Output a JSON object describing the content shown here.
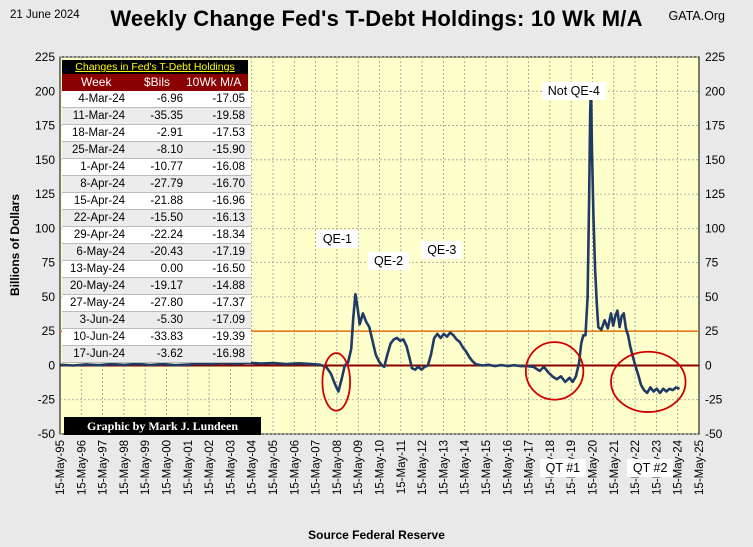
{
  "header": {
    "date": "21 June 2024",
    "title": "Weekly Change Fed's T-Debt Holdings:  10 Wk M/A",
    "source": "GATA.Org"
  },
  "footer": {
    "source_label": "Source Federal Reserve",
    "credit": "Graphic by Mark J. Lundeen"
  },
  "colors": {
    "background": "#e9e9e9",
    "plot_background": "#ffffcc",
    "series_line": "#1f3a64",
    "zero_line": "#8b0000",
    "threshold_line": "#e07a1c",
    "circle": "#d00000",
    "table_header": "#8b0000",
    "table_caption_text": "#ffff00"
  },
  "table": {
    "caption": "Changes in Fed's T-Debt Holdings",
    "headers": [
      "Week",
      "$Bils",
      "10Wk M/A"
    ],
    "rows": [
      [
        "4-Mar-24",
        "-6.96",
        "-17.05"
      ],
      [
        "11-Mar-24",
        "-35.35",
        "-19.58"
      ],
      [
        "18-Mar-24",
        "-2.91",
        "-17.53"
      ],
      [
        "25-Mar-24",
        "-8.10",
        "-15.90"
      ],
      [
        "1-Apr-24",
        "-10.77",
        "-16.08"
      ],
      [
        "8-Apr-24",
        "-27.79",
        "-16.70"
      ],
      [
        "15-Apr-24",
        "-21.88",
        "-16.96"
      ],
      [
        "22-Apr-24",
        "-15.50",
        "-16.13"
      ],
      [
        "29-Apr-24",
        "-22.24",
        "-18.34"
      ],
      [
        "6-May-24",
        "-20.43",
        "-17.19"
      ],
      [
        "13-May-24",
        "0.00",
        "-16.50"
      ],
      [
        "20-May-24",
        "-19.17",
        "-14.88"
      ],
      [
        "27-May-24",
        "-27.80",
        "-17.37"
      ],
      [
        "3-Jun-24",
        "-5.30",
        "-17.09"
      ],
      [
        "10-Jun-24",
        "-33.83",
        "-19.39"
      ],
      [
        "17-Jun-24",
        "-3.62",
        "-16.98"
      ]
    ]
  },
  "annotations": [
    {
      "label": "QE-1",
      "x": 2008.4,
      "y": 92
    },
    {
      "label": "QE-2",
      "x": 2010.8,
      "y": 76
    },
    {
      "label": "QE-3",
      "x": 2013.3,
      "y": 84
    },
    {
      "label": "Not QE-4",
      "x": 2019.5,
      "y": 200
    },
    {
      "label": "QT #1",
      "x": 2019.0,
      "y": -75
    },
    {
      "label": "QT #2",
      "x": 2023.1,
      "y": -75
    }
  ],
  "highlight_circles": [
    {
      "x": 2008.35,
      "y": -12,
      "rx_years": 0.65,
      "ry_billions": 21
    },
    {
      "x": 2018.6,
      "y": -4,
      "rx_years": 1.35,
      "ry_billions": 21
    },
    {
      "x": 2023.0,
      "y": -12,
      "rx_years": 1.75,
      "ry_billions": 22
    }
  ],
  "chart_data": {
    "type": "line",
    "title": "Weekly Change Fed's T-Debt Holdings:  10 Wk M/A",
    "xlabel": "Source Federal Reserve",
    "ylabel": "Billions  of  Dollars",
    "xlim": [
      1995.38,
      2025.38
    ],
    "ylim": [
      -50,
      225
    ],
    "yticks": [
      -50,
      -25,
      0,
      25,
      50,
      75,
      100,
      125,
      150,
      175,
      200,
      225
    ],
    "xtick_labels": [
      "15-May-95",
      "15-May-96",
      "15-May-97",
      "15-May-98",
      "15-May-99",
      "15-May-00",
      "15-May-01",
      "15-May-02",
      "15-May-03",
      "15-May-04",
      "15-May-05",
      "15-May-06",
      "15-May-07",
      "15-May-08",
      "15-May-09",
      "15-May-10",
      "15-May-11",
      "15-May-12",
      "15-May-13",
      "15-May-14",
      "15-May-15",
      "15-May-16",
      "15-May-17",
      "15-May-18",
      "15-May-19",
      "15-May-20",
      "15-May-21",
      "15-May-22",
      "15-May-23",
      "15-May-24",
      "15-May-25"
    ],
    "reference_lines": [
      {
        "y": 0,
        "label": "zero"
      },
      {
        "y": 25,
        "label": "25"
      }
    ],
    "series": [
      {
        "name": "10 Wk M/A",
        "points": [
          [
            1995.4,
            0.5
          ],
          [
            1996.0,
            0.0
          ],
          [
            1996.6,
            0.8
          ],
          [
            1997.2,
            0.2
          ],
          [
            1997.8,
            1.0
          ],
          [
            1998.4,
            0.4
          ],
          [
            1999.0,
            1.2
          ],
          [
            1999.6,
            0.3
          ],
          [
            2000.2,
            1.0
          ],
          [
            2000.8,
            0.2
          ],
          [
            2001.4,
            0.6
          ],
          [
            2001.8,
            1.5
          ],
          [
            2002.4,
            1.0
          ],
          [
            2003.0,
            1.8
          ],
          [
            2003.6,
            1.2
          ],
          [
            2004.2,
            2.0
          ],
          [
            2004.8,
            1.4
          ],
          [
            2005.4,
            1.8
          ],
          [
            2006.0,
            1.0
          ],
          [
            2006.6,
            1.6
          ],
          [
            2007.2,
            1.0
          ],
          [
            2007.6,
            0.5
          ],
          [
            2007.9,
            -1.5
          ],
          [
            2008.1,
            -6
          ],
          [
            2008.3,
            -14
          ],
          [
            2008.45,
            -19
          ],
          [
            2008.6,
            -10
          ],
          [
            2008.75,
            0
          ],
          [
            2008.9,
            2
          ],
          [
            2009.05,
            12
          ],
          [
            2009.15,
            35
          ],
          [
            2009.25,
            52
          ],
          [
            2009.35,
            42
          ],
          [
            2009.45,
            30
          ],
          [
            2009.6,
            38
          ],
          [
            2009.75,
            32
          ],
          [
            2009.9,
            28
          ],
          [
            2010.05,
            18
          ],
          [
            2010.2,
            8
          ],
          [
            2010.35,
            3
          ],
          [
            2010.5,
            0
          ],
          [
            2010.6,
            -1
          ],
          [
            2010.75,
            8
          ],
          [
            2010.9,
            16
          ],
          [
            2011.05,
            19
          ],
          [
            2011.2,
            20
          ],
          [
            2011.35,
            18
          ],
          [
            2011.5,
            19
          ],
          [
            2011.65,
            14
          ],
          [
            2011.8,
            5
          ],
          [
            2011.9,
            -2
          ],
          [
            2012.05,
            -3
          ],
          [
            2012.2,
            -1
          ],
          [
            2012.35,
            -3
          ],
          [
            2012.5,
            -1
          ],
          [
            2012.65,
            0
          ],
          [
            2012.8,
            8
          ],
          [
            2012.95,
            20
          ],
          [
            2013.1,
            23
          ],
          [
            2013.25,
            20
          ],
          [
            2013.4,
            23
          ],
          [
            2013.55,
            21
          ],
          [
            2013.7,
            24
          ],
          [
            2013.85,
            22
          ],
          [
            2014.0,
            19
          ],
          [
            2014.15,
            17
          ],
          [
            2014.3,
            13
          ],
          [
            2014.45,
            10
          ],
          [
            2014.6,
            6
          ],
          [
            2014.75,
            3
          ],
          [
            2014.9,
            1
          ],
          [
            2015.2,
            0
          ],
          [
            2015.5,
            0.5
          ],
          [
            2015.8,
            -0.5
          ],
          [
            2016.1,
            0.3
          ],
          [
            2016.4,
            -0.5
          ],
          [
            2016.7,
            0.2
          ],
          [
            2017.0,
            -0.5
          ],
          [
            2017.3,
            -0.5
          ],
          [
            2017.6,
            -1
          ],
          [
            2017.9,
            -4
          ],
          [
            2018.1,
            -1
          ],
          [
            2018.3,
            -5
          ],
          [
            2018.5,
            -8
          ],
          [
            2018.7,
            -10
          ],
          [
            2018.9,
            -8
          ],
          [
            2019.1,
            -12
          ],
          [
            2019.3,
            -9
          ],
          [
            2019.45,
            -12
          ],
          [
            2019.6,
            -8
          ],
          [
            2019.75,
            2
          ],
          [
            2019.85,
            16
          ],
          [
            2019.95,
            22
          ],
          [
            2020.05,
            22
          ],
          [
            2020.15,
            50
          ],
          [
            2020.22,
            120
          ],
          [
            2020.27,
            185
          ],
          [
            2020.31,
            203
          ],
          [
            2020.35,
            160
          ],
          [
            2020.42,
            110
          ],
          [
            2020.5,
            70
          ],
          [
            2020.58,
            45
          ],
          [
            2020.65,
            28
          ],
          [
            2020.8,
            26
          ],
          [
            2020.95,
            33
          ],
          [
            2021.1,
            27
          ],
          [
            2021.25,
            38
          ],
          [
            2021.35,
            29
          ],
          [
            2021.45,
            36
          ],
          [
            2021.55,
            40
          ],
          [
            2021.65,
            28
          ],
          [
            2021.75,
            36
          ],
          [
            2021.85,
            38
          ],
          [
            2021.95,
            27
          ],
          [
            2022.05,
            22
          ],
          [
            2022.15,
            14
          ],
          [
            2022.25,
            8
          ],
          [
            2022.35,
            2
          ],
          [
            2022.45,
            -3
          ],
          [
            2022.55,
            -8
          ],
          [
            2022.65,
            -14
          ],
          [
            2022.8,
            -18
          ],
          [
            2022.95,
            -20
          ],
          [
            2023.1,
            -16
          ],
          [
            2023.25,
            -19
          ],
          [
            2023.4,
            -17
          ],
          [
            2023.55,
            -20
          ],
          [
            2023.7,
            -17
          ],
          [
            2023.85,
            -19
          ],
          [
            2024.0,
            -17
          ],
          [
            2024.15,
            -18
          ],
          [
            2024.3,
            -16
          ],
          [
            2024.47,
            -17
          ]
        ]
      }
    ]
  }
}
